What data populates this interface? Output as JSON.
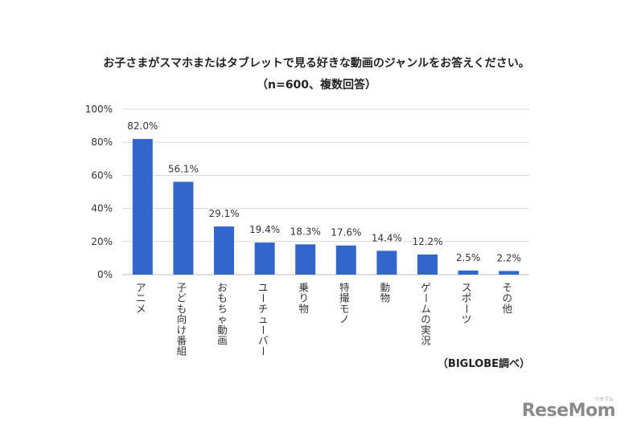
{
  "chart_data": {
    "type": "bar",
    "title": "お子さまがスマホまたはタブレットで見る好きな動画のジャンルをお答えください。",
    "subtitle": "（n=600、複数回答）",
    "categories": [
      "アニメ",
      "子ども向け番組",
      "おもちゃ動画",
      "ユーチューバー",
      "乗り物",
      "特撮モノ",
      "動物",
      "ゲームの実況",
      "スポーツ",
      "その他"
    ],
    "values": [
      82.0,
      56.1,
      29.1,
      19.4,
      18.3,
      17.6,
      14.4,
      12.2,
      2.5,
      2.2
    ],
    "value_labels": [
      "82.0%",
      "56.1%",
      "29.1%",
      "19.4%",
      "18.3%",
      "17.6%",
      "14.4%",
      "12.2%",
      "2.5%",
      "2.2%"
    ],
    "ylim": [
      0,
      100
    ],
    "yticks": [
      0,
      20,
      40,
      60,
      80,
      100
    ],
    "ytick_labels": [
      "0%",
      "20%",
      "40%",
      "60%",
      "80%",
      "100%"
    ],
    "xlabel": "",
    "ylabel": "",
    "grid": true,
    "bar_color": "#3366cc",
    "grid_color": "#d9d9d9",
    "source": "（BIGLOBE調べ）"
  },
  "branding": {
    "logo": "ReseMom",
    "logo_sub": "リセマム"
  }
}
